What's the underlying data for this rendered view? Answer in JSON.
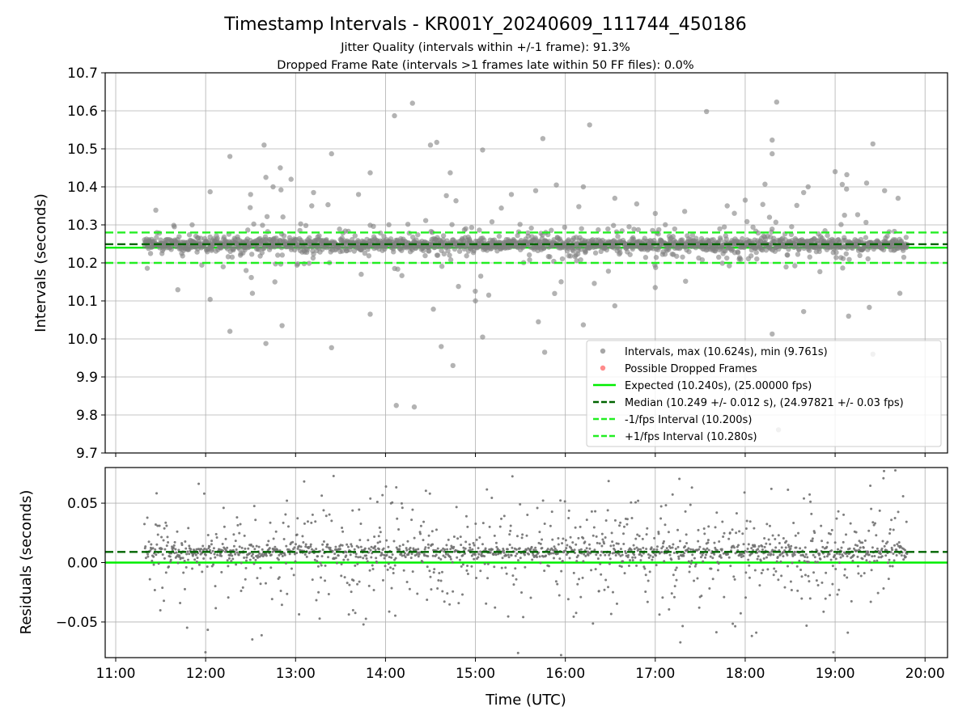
{
  "figure": {
    "title": "Timestamp Intervals - KR001Y_20240609_111744_450186",
    "subtitle_line1": "Jitter Quality (intervals within +/-1 frame): 91.3%",
    "subtitle_line2": "Dropped Frame Rate (intervals >1 frames late within 50 FF files): 0.0%"
  },
  "chart_data": [
    {
      "type": "scatter",
      "panel": "intervals",
      "ylabel": "Intervals (seconds)",
      "xlabel": "",
      "x_unit": "hours UTC",
      "xlim": [
        10.883,
        20.25
      ],
      "ylim": [
        9.7,
        10.7
      ],
      "x_ticks": [
        11,
        12,
        13,
        14,
        15,
        16,
        17,
        18,
        19,
        20
      ],
      "y_ticks": [
        9.7,
        9.8,
        9.9,
        10.0,
        10.1,
        10.2,
        10.3,
        10.4,
        10.5,
        10.6,
        10.7
      ],
      "y_tick_labels": [
        "9.7",
        "9.8",
        "9.9",
        "10.0",
        "10.1",
        "10.2",
        "10.3",
        "10.4",
        "10.5",
        "10.6",
        "10.7"
      ],
      "grid": true,
      "legend_position": "lower-right",
      "x_range_of_points": [
        11.32,
        19.8
      ],
      "series": [
        {
          "name": "Intervals, max (10.624s), min (9.761s)",
          "kind": "points",
          "color": "#808080",
          "max": 10.624,
          "min": 9.761,
          "center": 10.249,
          "spread": 0.012
        },
        {
          "name": "Possible Dropped Frames",
          "kind": "points",
          "color": "#ff5a5a",
          "values": []
        },
        {
          "name": "Expected (10.240s), (25.00000 fps)",
          "kind": "hline",
          "y": 10.24,
          "color": "#00ee00",
          "dash": "solid"
        },
        {
          "name": "Median (10.249 +/- 0.012 s), (24.97821 +/- 0.03 fps)",
          "kind": "hline",
          "y": 10.249,
          "color": "#006400",
          "dash": "dashed"
        },
        {
          "name": "-1/fps Interval (10.200s)",
          "kind": "hline",
          "y": 10.2,
          "color": "#22ee22",
          "dash": "dashed"
        },
        {
          "name": "+1/fps Interval (10.280s)",
          "kind": "hline",
          "y": 10.28,
          "color": "#22ee22",
          "dash": "dashed"
        }
      ],
      "outliers": [
        [
          11.85,
          10.3
        ],
        [
          12.05,
          10.387
        ],
        [
          12.05,
          10.104
        ],
        [
          12.27,
          10.48
        ],
        [
          12.27,
          10.02
        ],
        [
          12.45,
          10.18
        ],
        [
          12.5,
          10.38
        ],
        [
          12.52,
          10.12
        ],
        [
          12.65,
          10.51
        ],
        [
          12.67,
          10.425
        ],
        [
          12.67,
          9.988
        ],
        [
          12.75,
          10.4
        ],
        [
          12.77,
          10.15
        ],
        [
          12.83,
          10.45
        ],
        [
          12.85,
          10.035
        ],
        [
          12.95,
          10.42
        ],
        [
          13.18,
          10.35
        ],
        [
          13.2,
          10.385
        ],
        [
          13.4,
          10.487
        ],
        [
          13.4,
          9.977
        ],
        [
          13.7,
          10.38
        ],
        [
          13.73,
          10.17
        ],
        [
          13.83,
          10.437
        ],
        [
          13.83,
          10.065
        ],
        [
          14.1,
          10.587
        ],
        [
          14.12,
          9.825
        ],
        [
          14.3,
          10.62
        ],
        [
          14.32,
          9.821
        ],
        [
          14.5,
          10.51
        ],
        [
          14.57,
          10.517
        ],
        [
          14.62,
          9.98
        ],
        [
          14.72,
          10.437
        ],
        [
          14.75,
          9.93
        ],
        [
          15.0,
          10.1
        ],
        [
          15.08,
          10.497
        ],
        [
          15.08,
          10.005
        ],
        [
          15.4,
          10.38
        ],
        [
          15.67,
          10.39
        ],
        [
          15.7,
          10.045
        ],
        [
          15.75,
          10.527
        ],
        [
          15.77,
          9.965
        ],
        [
          15.9,
          10.405
        ],
        [
          16.15,
          10.348
        ],
        [
          16.18,
          10.29
        ],
        [
          16.2,
          10.4
        ],
        [
          16.2,
          10.037
        ],
        [
          16.27,
          10.563
        ],
        [
          16.55,
          10.37
        ],
        [
          16.55,
          10.087
        ],
        [
          17.0,
          10.33
        ],
        [
          17.57,
          10.598
        ],
        [
          17.8,
          10.35
        ],
        [
          18.0,
          10.365
        ],
        [
          18.22,
          10.407
        ],
        [
          18.27,
          10.32
        ],
        [
          18.3,
          10.523
        ],
        [
          18.3,
          10.487
        ],
        [
          18.3,
          10.013
        ],
        [
          18.35,
          10.623
        ],
        [
          18.37,
          9.761
        ],
        [
          18.65,
          10.385
        ],
        [
          18.65,
          10.072
        ],
        [
          18.7,
          10.4
        ],
        [
          19.0,
          10.44
        ],
        [
          19.13,
          10.432
        ],
        [
          19.15,
          10.06
        ],
        [
          19.35,
          10.41
        ],
        [
          19.38,
          10.083
        ],
        [
          19.42,
          10.513
        ],
        [
          19.42,
          9.96
        ],
        [
          19.55,
          10.39
        ],
        [
          19.7,
          10.37
        ],
        [
          19.72,
          10.12
        ]
      ]
    },
    {
      "type": "scatter",
      "panel": "residuals",
      "ylabel": "Residuals (seconds)",
      "xlabel": "Time (UTC)",
      "x_unit": "hours UTC",
      "xlim": [
        10.883,
        20.25
      ],
      "ylim": [
        -0.08,
        0.08
      ],
      "x_ticks": [
        11,
        12,
        13,
        14,
        15,
        16,
        17,
        18,
        19,
        20
      ],
      "x_tick_labels": [
        "11:00",
        "12:00",
        "13:00",
        "14:00",
        "15:00",
        "16:00",
        "17:00",
        "18:00",
        "19:00",
        "20:00"
      ],
      "y_ticks": [
        -0.05,
        0.0,
        0.05
      ],
      "y_tick_labels": [
        "−0.05",
        "0.00",
        "0.05"
      ],
      "grid": true,
      "series": [
        {
          "kind": "points",
          "color": "#707070",
          "center": 0.009,
          "range": [
            -0.08,
            0.08
          ]
        },
        {
          "kind": "hline",
          "y": 0.0,
          "color": "#00ee00",
          "dash": "solid"
        },
        {
          "kind": "hline",
          "y": 0.009,
          "color": "#006400",
          "dash": "dashed"
        }
      ]
    }
  ]
}
